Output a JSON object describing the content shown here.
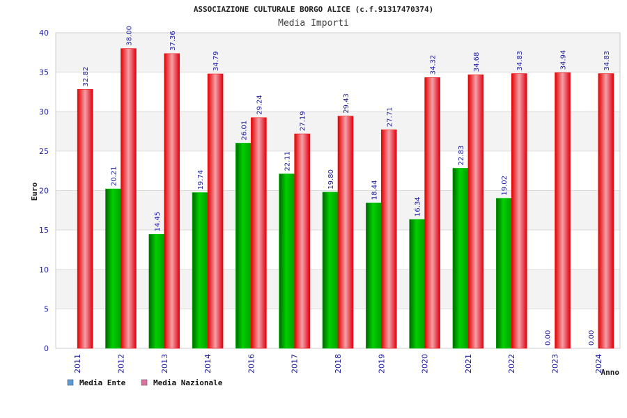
{
  "colors": {
    "ente_bar": "#00c000",
    "nazionale_bar": "#f01010",
    "legend_ente": "#5b9bd5",
    "legend_nazionale": "#e070a0",
    "band_light": "#f3f3f3",
    "band_white": "#ffffff",
    "tick_text": "#1a1aa0"
  },
  "chart_data": {
    "type": "bar",
    "title": "ASSOCIAZIONE CULTURALE BORGO ALICE (c.f.91317470374)",
    "subtitle": "Media Importi",
    "xlabel": "Anno",
    "ylabel": "Euro",
    "ylim": [
      0,
      40
    ],
    "yticks": [
      "0",
      "5",
      "10",
      "15",
      "20",
      "25",
      "30",
      "35",
      "40"
    ],
    "grid": true,
    "legend_position": "bottom-left",
    "categories": [
      "2011",
      "2012",
      "2013",
      "2014",
      "2016",
      "2017",
      "2018",
      "2019",
      "2020",
      "2021",
      "2022",
      "2023",
      "2024"
    ],
    "series": [
      {
        "name": "Media Ente",
        "values": [
          null,
          20.21,
          14.45,
          19.74,
          26.01,
          22.11,
          19.8,
          18.44,
          16.34,
          22.83,
          19.02,
          0.0,
          0.0
        ],
        "labels": [
          "",
          "20.21",
          "14.45",
          "19.74",
          "26.01",
          "22.11",
          "19.80",
          "18.44",
          "16.34",
          "22.83",
          "19.02",
          "0.00",
          "0.00"
        ]
      },
      {
        "name": "Media Nazionale",
        "values": [
          32.82,
          38.0,
          37.36,
          34.79,
          29.24,
          27.19,
          29.43,
          27.71,
          34.32,
          34.68,
          34.83,
          34.94,
          34.83
        ],
        "labels": [
          "32.82",
          "38.00",
          "37.36",
          "34.79",
          "29.24",
          "27.19",
          "29.43",
          "27.71",
          "34.32",
          "34.68",
          "34.83",
          "34.94",
          "34.83"
        ]
      }
    ]
  }
}
